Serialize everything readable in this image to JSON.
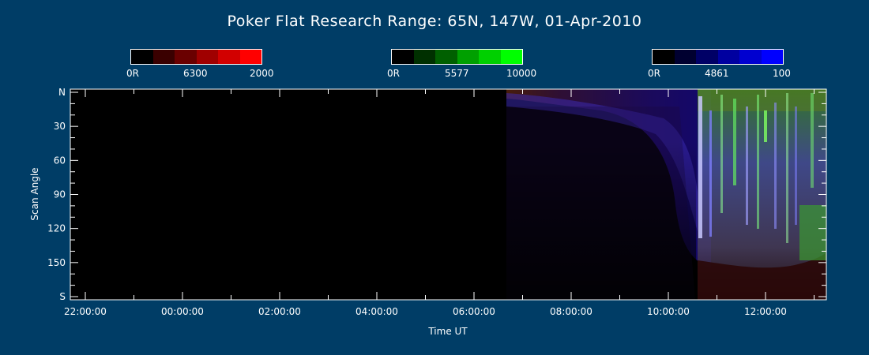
{
  "chart_data": {
    "type": "heatmap",
    "title": "Poker Flat Research Range: 65N, 147W, 01-Apr-2010",
    "xlabel": "Time UT",
    "ylabel": "Scan Angle",
    "x_ticks": [
      "22:00:00",
      "00:00:00",
      "02:00:00",
      "04:00:00",
      "06:00:00",
      "08:00:00",
      "10:00:00",
      "12:00:00"
    ],
    "y_ticks": [
      "N",
      "30",
      "60",
      "90",
      "120",
      "150",
      "S"
    ],
    "y_range": [
      0,
      180
    ],
    "colorbars": [
      {
        "name": "6300",
        "min_label": "0R",
        "max_label": "2000",
        "colors": [
          "#000000",
          "#3a0000",
          "#6a0000",
          "#a00000",
          "#d20000",
          "#ff0000"
        ]
      },
      {
        "name": "5577",
        "min_label": "0R",
        "max_label": "10000",
        "colors": [
          "#000000",
          "#003000",
          "#006000",
          "#00a000",
          "#00d000",
          "#00ff00"
        ]
      },
      {
        "name": "4861",
        "min_label": "0R",
        "max_label": "100",
        "colors": [
          "#000000",
          "#000030",
          "#000066",
          "#0000a0",
          "#0000d0",
          "#0000ff"
        ]
      }
    ],
    "features": [
      {
        "name": "dark",
        "start": "22:00:00",
        "end": "06:39:00"
      },
      {
        "name": "diffuse_aurora",
        "start": "06:39:00",
        "end": "10:30:00"
      },
      {
        "name": "discrete_aurora",
        "start": "10:30:00",
        "end": "13:05:00"
      }
    ]
  }
}
